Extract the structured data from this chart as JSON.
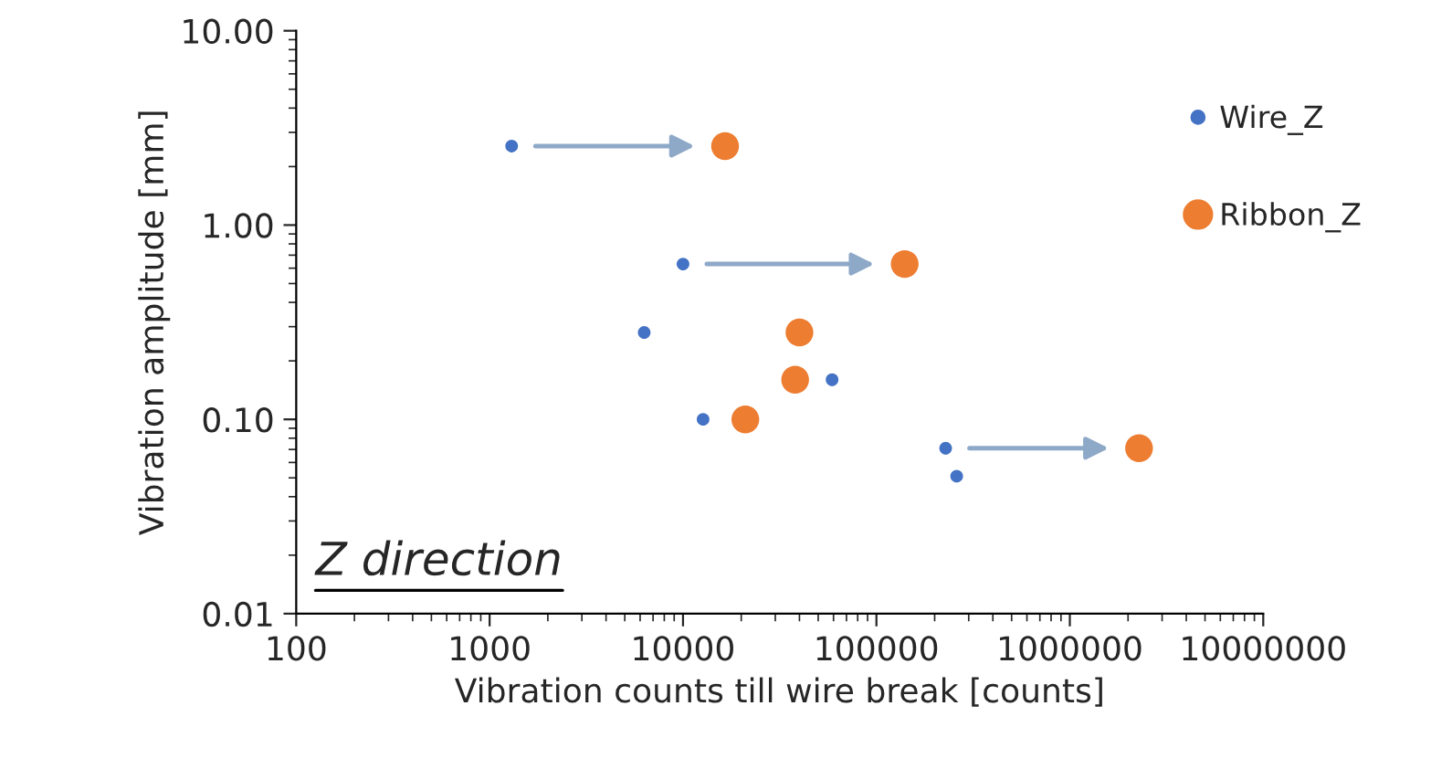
{
  "chart_data": {
    "type": "scatter",
    "xlabel": "Vibration counts till wire break [counts]",
    "ylabel": "Vibration amplitude [mm]",
    "log": "xy",
    "xlim": [
      100,
      10000000
    ],
    "ylim": [
      0.01,
      10
    ],
    "xticks": [
      100,
      1000,
      10000,
      100000,
      1000000,
      10000000
    ],
    "yticks": [
      {
        "value": 0.01,
        "label": "0.01"
      },
      {
        "value": 0.1,
        "label": "0.10"
      },
      {
        "value": 1,
        "label": "1.00"
      },
      {
        "value": 10,
        "label": "10.00"
      }
    ],
    "grid": false,
    "legend": "top right",
    "marker": "circle",
    "annotations": [
      "Z direction"
    ],
    "series": [
      {
        "name": "Wire_Z",
        "color": "#4472c4",
        "x": [
          1300,
          10000,
          6300,
          59000,
          12700,
          228000,
          260000
        ],
        "values": [
          2.55,
          0.63,
          0.28,
          0.16,
          0.1,
          0.071,
          0.051
        ]
      },
      {
        "name": "Ribbon_Z",
        "color": "#ed7d31",
        "x": [
          16500,
          140000,
          40000,
          38000,
          21000,
          2280000
        ],
        "values": [
          2.55,
          0.63,
          0.28,
          0.16,
          0.1,
          0.071
        ]
      }
    ]
  }
}
